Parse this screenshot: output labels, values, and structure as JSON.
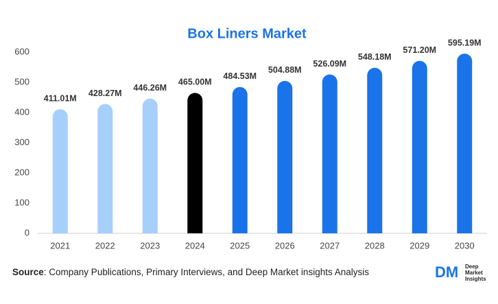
{
  "chart_data": {
    "type": "bar",
    "title": "Box Liners Market",
    "categories": [
      "2021",
      "2022",
      "2023",
      "2024",
      "2025",
      "2026",
      "2027",
      "2028",
      "2029",
      "2030"
    ],
    "values": [
      411.01,
      428.27,
      446.26,
      465.0,
      484.53,
      504.88,
      526.09,
      548.18,
      571.2,
      595.19
    ],
    "value_labels": [
      "411.01M",
      "428.27M",
      "446.26M",
      "465.00M",
      "484.53M",
      "504.88M",
      "526.09M",
      "548.18M",
      "571.20M",
      "595.19M"
    ],
    "colors": [
      "#a6cffb",
      "#a6cffb",
      "#a6cffb",
      "#000000",
      "#1a73e8",
      "#1a73e8",
      "#1a73e8",
      "#1a73e8",
      "#1a73e8",
      "#1a73e8"
    ],
    "ylim": [
      0,
      600
    ],
    "yticks": [
      0,
      100,
      200,
      300,
      400,
      500,
      600
    ],
    "grid": false
  },
  "footer": {
    "source_label": "Source",
    "source_text": ": Company Publications, Primary Interviews, and Deep Market insights Analysis",
    "logo": {
      "mark": "DM",
      "lines": [
        "Deep",
        "Market",
        "Insights"
      ]
    }
  }
}
